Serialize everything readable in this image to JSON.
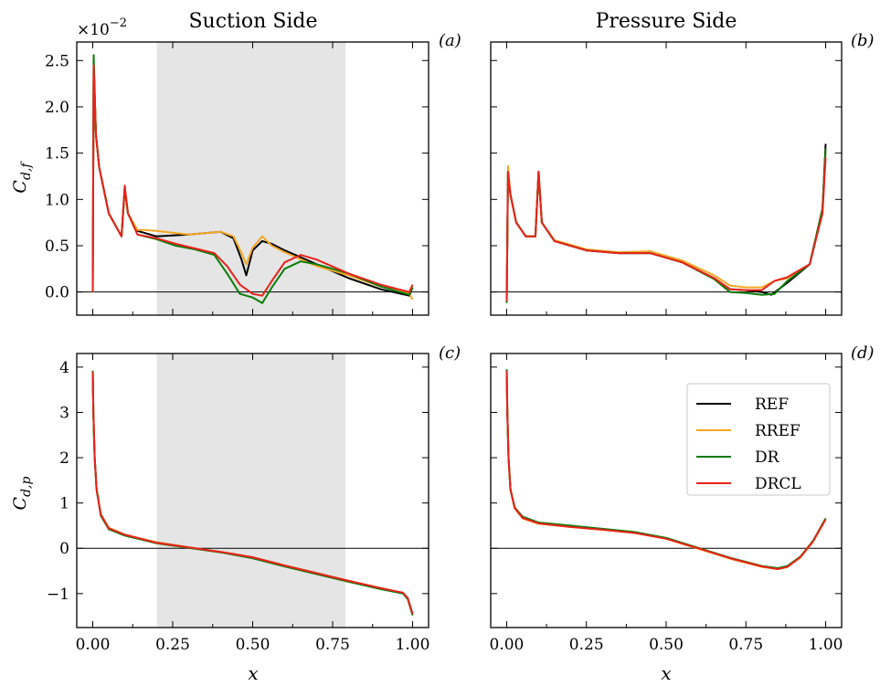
{
  "figure": {
    "titles": [
      "Suction Side",
      "Pressure Side"
    ],
    "panel_labels": [
      "(a)",
      "(b)",
      "(c)",
      "(d)"
    ],
    "top_ylabel": "Cd,f",
    "bottom_ylabel": "Cd,p",
    "xlabel": "x",
    "sci_offset_base": "×10",
    "sci_offset_exp": "−2",
    "legend": [
      "REF",
      "RREF",
      "DR",
      "DRCL"
    ]
  },
  "colors": {
    "REF": "#000000",
    "RREF": "#f5a623",
    "DR": "#0a7d0a",
    "DRCL": "#e8221b",
    "shade": "#e5e5e5"
  },
  "chart_data": [
    {
      "panel": "(a)",
      "title": "Suction Side",
      "type": "line",
      "ylabel": "Cd,f",
      "xlim": [
        -0.05,
        1.05
      ],
      "ylim": [
        -0.25,
        2.7
      ],
      "y_multiplier": "×10^-2",
      "xticks": [
        "0.00",
        "0.25",
        "0.50",
        "0.75",
        "1.00"
      ],
      "yticks": [
        "0.0",
        "0.5",
        "1.0",
        "1.5",
        "2.0",
        "2.5"
      ],
      "shaded_x": [
        0.2,
        0.79
      ],
      "zero_line": true,
      "series": [
        {
          "name": "REF",
          "x": [
            0,
            0.003,
            0.01,
            0.02,
            0.05,
            0.09,
            0.1,
            0.11,
            0.14,
            0.2,
            0.3,
            0.4,
            0.44,
            0.465,
            0.48,
            0.5,
            0.53,
            0.56,
            0.6,
            0.7,
            0.8,
            0.9,
            0.99,
            1.0
          ],
          "y": [
            0,
            2.45,
            1.7,
            1.35,
            0.85,
            0.6,
            1.12,
            0.85,
            0.66,
            0.6,
            0.62,
            0.65,
            0.58,
            0.35,
            0.18,
            0.45,
            0.55,
            0.52,
            0.45,
            0.3,
            0.15,
            0.03,
            -0.04,
            0.05
          ]
        },
        {
          "name": "RREF",
          "x": [
            0,
            0.003,
            0.01,
            0.02,
            0.05,
            0.09,
            0.1,
            0.11,
            0.14,
            0.16,
            0.2,
            0.3,
            0.4,
            0.44,
            0.465,
            0.48,
            0.5,
            0.53,
            0.56,
            0.6,
            0.7,
            0.8,
            0.9,
            0.99,
            1.0
          ],
          "y": [
            0,
            2.4,
            1.7,
            1.35,
            0.85,
            0.6,
            1.1,
            0.85,
            0.67,
            0.67,
            0.66,
            0.62,
            0.65,
            0.6,
            0.42,
            0.3,
            0.48,
            0.6,
            0.5,
            0.43,
            0.28,
            0.18,
            0.06,
            -0.02,
            -0.08
          ]
        },
        {
          "name": "DR",
          "x": [
            0,
            0.003,
            0.01,
            0.02,
            0.05,
            0.09,
            0.1,
            0.11,
            0.14,
            0.2,
            0.26,
            0.32,
            0.38,
            0.42,
            0.46,
            0.5,
            0.53,
            0.56,
            0.6,
            0.65,
            0.7,
            0.8,
            0.9,
            0.99,
            1.0
          ],
          "y": [
            0,
            2.56,
            1.7,
            1.35,
            0.85,
            0.6,
            1.12,
            0.85,
            0.62,
            0.57,
            0.5,
            0.46,
            0.4,
            0.2,
            -0.02,
            -0.06,
            -0.12,
            0.05,
            0.25,
            0.33,
            0.3,
            0.2,
            0.06,
            -0.03,
            0.05
          ]
        },
        {
          "name": "DRCL",
          "x": [
            0,
            0.003,
            0.01,
            0.02,
            0.05,
            0.09,
            0.1,
            0.11,
            0.14,
            0.2,
            0.26,
            0.32,
            0.38,
            0.42,
            0.46,
            0.5,
            0.53,
            0.56,
            0.6,
            0.65,
            0.7,
            0.8,
            0.9,
            0.99,
            1.0
          ],
          "y": [
            0,
            2.45,
            1.7,
            1.35,
            0.85,
            0.6,
            1.15,
            0.85,
            0.62,
            0.58,
            0.52,
            0.47,
            0.42,
            0.28,
            0.08,
            -0.02,
            -0.04,
            0.12,
            0.32,
            0.4,
            0.35,
            0.2,
            0.08,
            0.0,
            0.08
          ]
        }
      ]
    },
    {
      "panel": "(b)",
      "title": "Pressure Side",
      "type": "line",
      "xlim": [
        -0.05,
        1.05
      ],
      "ylim": [
        -0.25,
        2.7
      ],
      "xticks": [
        "0.00",
        "0.25",
        "0.50",
        "0.75",
        "1.00"
      ],
      "zero_line": true,
      "series": [
        {
          "name": "REF",
          "x": [
            0,
            0.004,
            0.012,
            0.03,
            0.06,
            0.09,
            0.1,
            0.11,
            0.15,
            0.25,
            0.35,
            0.45,
            0.55,
            0.65,
            0.7,
            0.75,
            0.8,
            0.83,
            0.88,
            0.95,
            0.99,
            1.0
          ],
          "y": [
            -0.1,
            1.3,
            1.05,
            0.75,
            0.6,
            0.6,
            1.3,
            0.75,
            0.55,
            0.45,
            0.42,
            0.42,
            0.32,
            0.15,
            0.03,
            0.02,
            0.0,
            -0.03,
            0.1,
            0.3,
            0.9,
            1.6
          ]
        },
        {
          "name": "RREF",
          "x": [
            0,
            0.004,
            0.012,
            0.03,
            0.06,
            0.09,
            0.1,
            0.11,
            0.15,
            0.25,
            0.35,
            0.45,
            0.55,
            0.65,
            0.7,
            0.75,
            0.8,
            0.84,
            0.88,
            0.95,
            0.99,
            1.0
          ],
          "y": [
            -0.1,
            1.36,
            1.05,
            0.75,
            0.6,
            0.6,
            1.3,
            0.75,
            0.56,
            0.46,
            0.43,
            0.44,
            0.34,
            0.18,
            0.07,
            0.05,
            0.05,
            0.12,
            0.15,
            0.3,
            0.9,
            1.5
          ]
        },
        {
          "name": "DR",
          "x": [
            0,
            0.004,
            0.012,
            0.03,
            0.06,
            0.09,
            0.1,
            0.11,
            0.15,
            0.25,
            0.35,
            0.45,
            0.55,
            0.65,
            0.7,
            0.75,
            0.8,
            0.84,
            0.88,
            0.95,
            0.99,
            1.0
          ],
          "y": [
            -0.12,
            1.25,
            1.05,
            0.75,
            0.6,
            0.6,
            1.3,
            0.75,
            0.55,
            0.45,
            0.42,
            0.42,
            0.32,
            0.14,
            0.0,
            -0.01,
            -0.03,
            -0.02,
            0.12,
            0.3,
            0.9,
            1.55
          ]
        },
        {
          "name": "DRCL",
          "x": [
            0,
            0.004,
            0.012,
            0.03,
            0.06,
            0.09,
            0.1,
            0.11,
            0.15,
            0.25,
            0.35,
            0.45,
            0.55,
            0.65,
            0.7,
            0.75,
            0.8,
            0.84,
            0.88,
            0.95,
            0.99,
            1.0
          ],
          "y": [
            -0.1,
            1.3,
            1.05,
            0.75,
            0.6,
            0.6,
            1.3,
            0.75,
            0.55,
            0.45,
            0.42,
            0.42,
            0.32,
            0.15,
            0.03,
            0.02,
            0.02,
            0.12,
            0.16,
            0.3,
            0.85,
            1.45
          ]
        }
      ]
    },
    {
      "panel": "(c)",
      "type": "line",
      "ylabel": "Cd,p",
      "xlabel": "x",
      "xlim": [
        -0.05,
        1.05
      ],
      "ylim": [
        -1.75,
        4.3
      ],
      "xticks": [
        "0.00",
        "0.25",
        "0.50",
        "0.75",
        "1.00"
      ],
      "yticks": [
        "−1",
        "0",
        "1",
        "2",
        "3",
        "4"
      ],
      "shaded_x": [
        0.2,
        0.79
      ],
      "zero_line": true,
      "series": [
        {
          "name": "REF",
          "x": [
            0,
            0.002,
            0.006,
            0.012,
            0.025,
            0.05,
            0.1,
            0.2,
            0.3,
            0.4,
            0.5,
            0.6,
            0.7,
            0.8,
            0.9,
            0.97,
            0.985,
            1.0
          ],
          "y": [
            3.9,
            3.0,
            2.0,
            1.3,
            0.75,
            0.45,
            0.3,
            0.13,
            0.02,
            -0.08,
            -0.2,
            -0.38,
            -0.55,
            -0.72,
            -0.88,
            -0.99,
            -1.1,
            -1.45
          ]
        },
        {
          "name": "RREF",
          "x": [
            0,
            0.002,
            0.006,
            0.012,
            0.025,
            0.05,
            0.1,
            0.2,
            0.3,
            0.4,
            0.5,
            0.6,
            0.7,
            0.8,
            0.9,
            0.97,
            0.985,
            1.0
          ],
          "y": [
            3.88,
            3.0,
            2.0,
            1.3,
            0.75,
            0.45,
            0.3,
            0.13,
            0.02,
            -0.08,
            -0.2,
            -0.38,
            -0.55,
            -0.72,
            -0.88,
            -0.99,
            -1.1,
            -1.45
          ]
        },
        {
          "name": "DR",
          "x": [
            0,
            0.002,
            0.006,
            0.012,
            0.025,
            0.05,
            0.1,
            0.2,
            0.3,
            0.4,
            0.5,
            0.6,
            0.7,
            0.8,
            0.9,
            0.97,
            0.985,
            1.0
          ],
          "y": [
            3.92,
            3.0,
            2.0,
            1.3,
            0.72,
            0.42,
            0.28,
            0.11,
            0.01,
            -0.09,
            -0.22,
            -0.4,
            -0.57,
            -0.74,
            -0.9,
            -1.0,
            -1.12,
            -1.48
          ]
        },
        {
          "name": "DRCL",
          "x": [
            0,
            0.002,
            0.006,
            0.012,
            0.025,
            0.05,
            0.1,
            0.2,
            0.3,
            0.4,
            0.5,
            0.6,
            0.7,
            0.8,
            0.9,
            0.97,
            0.985,
            1.0
          ],
          "y": [
            3.9,
            3.0,
            2.0,
            1.3,
            0.74,
            0.44,
            0.3,
            0.12,
            0.02,
            -0.08,
            -0.2,
            -0.38,
            -0.55,
            -0.72,
            -0.88,
            -0.98,
            -1.1,
            -1.45
          ]
        }
      ]
    },
    {
      "panel": "(d)",
      "type": "line",
      "xlabel": "x",
      "xlim": [
        -0.05,
        1.05
      ],
      "ylim": [
        -1.75,
        4.3
      ],
      "xticks": [
        "0.00",
        "0.25",
        "0.50",
        "0.75",
        "1.00"
      ],
      "zero_line": true,
      "legend_position": "upper right",
      "series": [
        {
          "name": "REF",
          "x": [
            0,
            0.002,
            0.006,
            0.012,
            0.025,
            0.05,
            0.1,
            0.2,
            0.3,
            0.4,
            0.5,
            0.6,
            0.7,
            0.8,
            0.85,
            0.88,
            0.92,
            0.96,
            1.0
          ],
          "y": [
            3.95,
            3.0,
            2.0,
            1.3,
            0.9,
            0.68,
            0.55,
            0.48,
            0.42,
            0.35,
            0.22,
            0.0,
            -0.22,
            -0.4,
            -0.45,
            -0.4,
            -0.2,
            0.15,
            0.65
          ]
        },
        {
          "name": "RREF",
          "x": [
            0,
            0.002,
            0.006,
            0.012,
            0.025,
            0.05,
            0.1,
            0.2,
            0.3,
            0.4,
            0.5,
            0.6,
            0.7,
            0.8,
            0.85,
            0.88,
            0.92,
            0.96,
            1.0
          ],
          "y": [
            3.9,
            3.0,
            2.0,
            1.3,
            0.88,
            0.66,
            0.54,
            0.47,
            0.41,
            0.34,
            0.21,
            -0.01,
            -0.23,
            -0.41,
            -0.46,
            -0.41,
            -0.21,
            0.14,
            0.64
          ]
        },
        {
          "name": "DR",
          "x": [
            0,
            0.002,
            0.006,
            0.012,
            0.025,
            0.05,
            0.1,
            0.2,
            0.3,
            0.4,
            0.5,
            0.6,
            0.7,
            0.8,
            0.85,
            0.88,
            0.92,
            0.96,
            1.0
          ],
          "y": [
            3.95,
            3.0,
            2.0,
            1.3,
            0.9,
            0.7,
            0.57,
            0.5,
            0.43,
            0.36,
            0.23,
            0.01,
            -0.21,
            -0.39,
            -0.44,
            -0.39,
            -0.19,
            0.16,
            0.66
          ]
        },
        {
          "name": "DRCL",
          "x": [
            0,
            0.002,
            0.006,
            0.012,
            0.025,
            0.05,
            0.1,
            0.2,
            0.3,
            0.4,
            0.5,
            0.6,
            0.7,
            0.8,
            0.85,
            0.88,
            0.92,
            0.96,
            1.0
          ],
          "y": [
            3.92,
            3.0,
            2.0,
            1.3,
            0.89,
            0.67,
            0.55,
            0.47,
            0.41,
            0.34,
            0.21,
            0.0,
            -0.22,
            -0.4,
            -0.46,
            -0.41,
            -0.2,
            0.15,
            0.64
          ]
        }
      ]
    }
  ]
}
